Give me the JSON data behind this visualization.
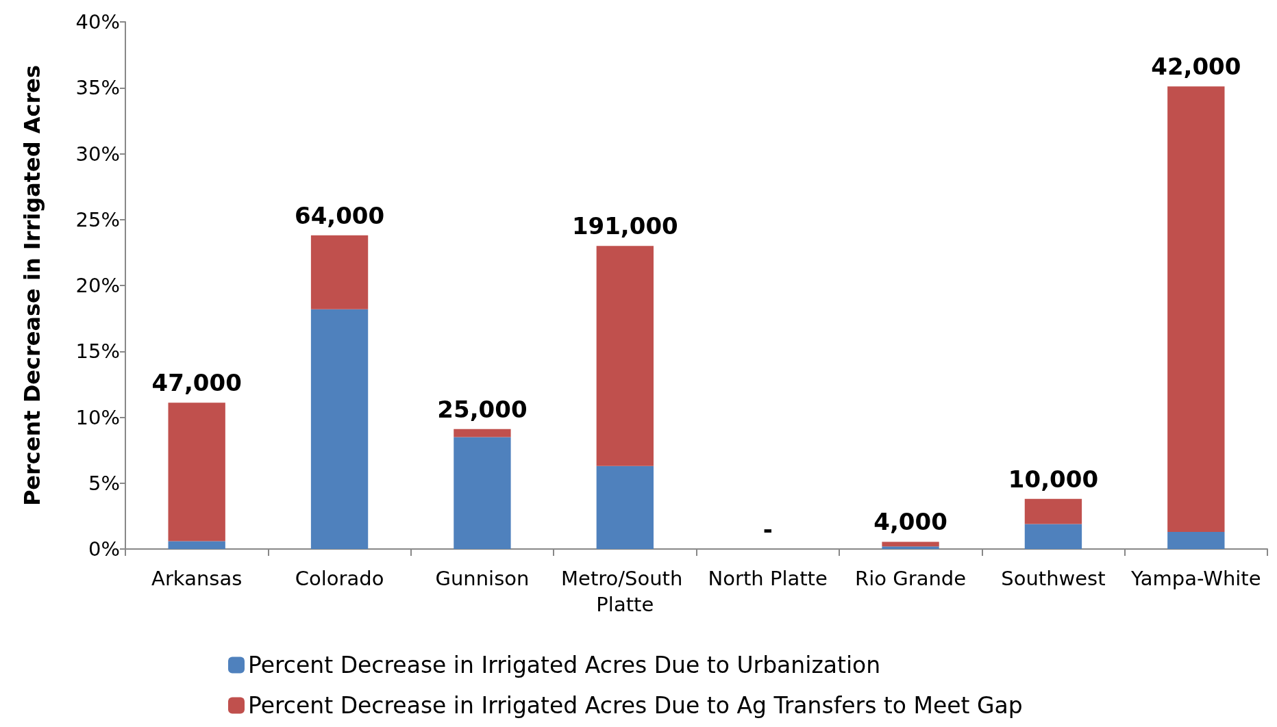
{
  "chart_data": {
    "type": "bar",
    "stacked": true,
    "ylabel": "Percent Decrease in Irrigated Acres",
    "categories": [
      "Arkansas",
      "Colorado",
      "Gunnison",
      "Metro/South Platte",
      "North Platte",
      "Rio Grande",
      "Southwest",
      "Yampa-White"
    ],
    "series": [
      {
        "name": "Percent Decrease in Irrigated Acres Due to Urbanization",
        "color": "#4f81bd",
        "values": [
          0.6,
          18.2,
          8.5,
          6.3,
          0,
          0.2,
          1.9,
          1.3
        ]
      },
      {
        "name": "Percent Decrease in Irrigated Acres Due to Ag Transfers to Meet Gap",
        "color": "#c0504d",
        "values": [
          10.5,
          5.6,
          0.6,
          16.7,
          0,
          0.35,
          1.9,
          33.8
        ]
      }
    ],
    "annotations": [
      {
        "text": "47,000",
        "x": "Arkansas",
        "y": 11.1
      },
      {
        "text": "64,000",
        "x": "Colorado",
        "y": 23.8
      },
      {
        "text": "25,000",
        "x": "Gunnison",
        "y": 9.1
      },
      {
        "text": "191,000",
        "x": "Metro/South Platte",
        "y": 23
      },
      {
        "text": "-",
        "x": "North Platte",
        "y": 0
      },
      {
        "text": "4,000",
        "x": "Rio Grande",
        "y": 0.55
      },
      {
        "text": "10,000",
        "x": "Southwest",
        "y": 3.8
      },
      {
        "text": "42,000",
        "x": "Yampa-White",
        "y": 35.1
      }
    ],
    "ylim": [
      0,
      40
    ],
    "yticks": [
      {
        "value": 0,
        "label": "0%"
      },
      {
        "value": 5,
        "label": "5%"
      },
      {
        "value": 10,
        "label": "10%"
      },
      {
        "value": 15,
        "label": "15%"
      },
      {
        "value": 20,
        "label": "20%"
      },
      {
        "value": 25,
        "label": "25%"
      },
      {
        "value": 30,
        "label": "30%"
      },
      {
        "value": 35,
        "label": "35%"
      },
      {
        "value": 40,
        "label": "40%"
      }
    ],
    "grid": false,
    "legend": "bottom"
  }
}
